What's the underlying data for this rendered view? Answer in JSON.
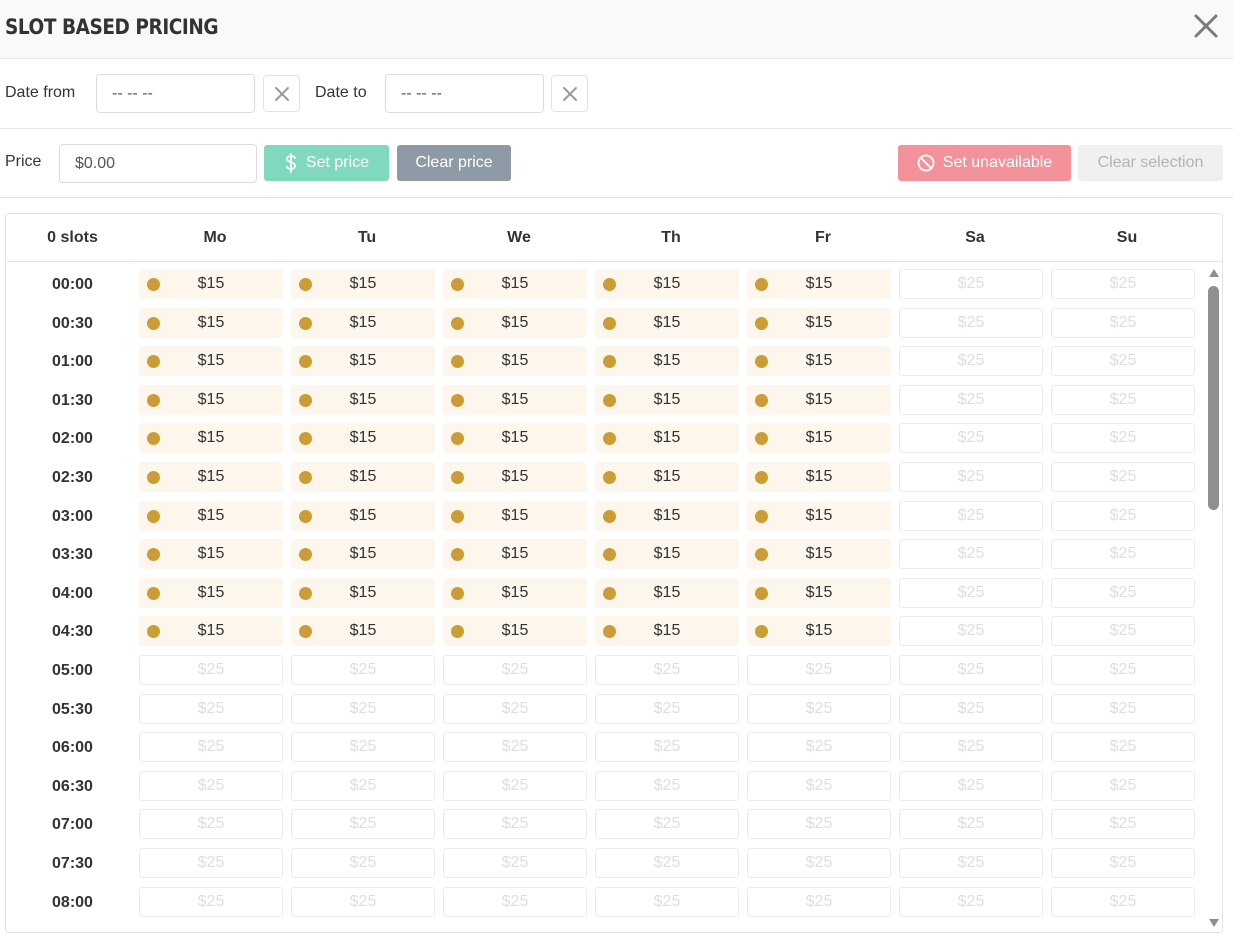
{
  "header": {
    "title": "SLOT BASED PRICING"
  },
  "dates": {
    "from_label": "Date from",
    "from_value": "-- -- --",
    "to_label": "Date to",
    "to_value": "-- -- --"
  },
  "price": {
    "label": "Price",
    "value": "$0.00",
    "set_label": "Set price",
    "clear_label": "Clear price",
    "unavailable_label": "Set unavailable",
    "clear_selection_label": "Clear selection"
  },
  "grid": {
    "slots_label": "0 slots",
    "days": [
      "Mo",
      "Tu",
      "We",
      "Th",
      "Fr",
      "Sa",
      "Su"
    ],
    "times": [
      "00:00",
      "00:30",
      "01:00",
      "01:30",
      "02:00",
      "02:30",
      "03:00",
      "03:30",
      "04:00",
      "04:30",
      "05:00",
      "05:30",
      "06:00",
      "06:30",
      "07:00",
      "07:30",
      "08:00"
    ],
    "active_price": "$15",
    "default_price": "$25",
    "active_rows": 10,
    "active_days": 5
  },
  "colors": {
    "accent_green": "#80d9bf",
    "slate": "#8e9ba6",
    "danger_pink": "#f4929b",
    "gold_dot": "#cc9d36",
    "cell_active_bg": "#fcf6ec"
  }
}
